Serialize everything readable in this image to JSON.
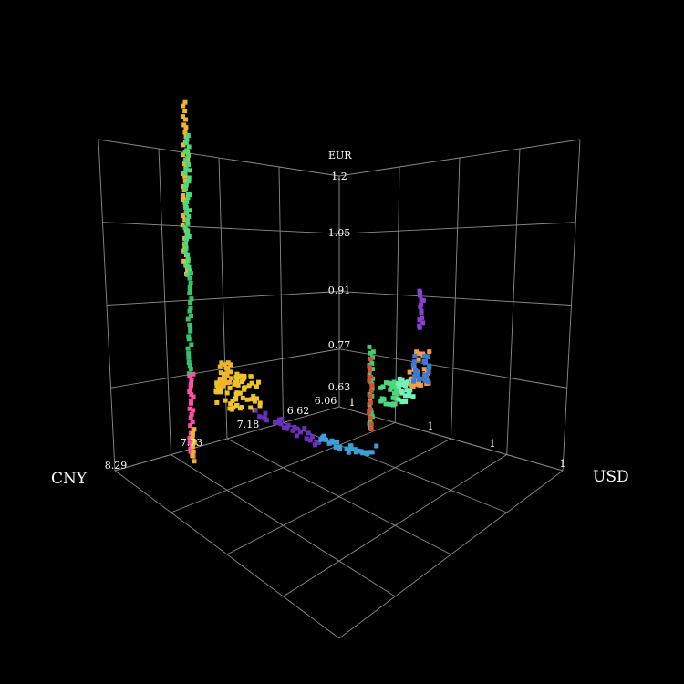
{
  "chart_data": {
    "type": "scatter",
    "title": "",
    "xlabel": "CNY",
    "ylabel": "USD",
    "zlabel": "EUR",
    "cny_ticks": [
      "8.29",
      "7.73",
      "7.18",
      "6.62",
      "6.06"
    ],
    "usd_ticks": [
      "1",
      "1",
      "1",
      "1"
    ],
    "eur_ticks": [
      "1.2",
      "1.05",
      "0.91",
      "0.77",
      "0.63"
    ],
    "series": [
      {
        "color": "#f0b429",
        "points": [
          [
            6.5,
            0.0,
            0.7
          ],
          [
            6.55,
            0.05,
            0.72
          ],
          [
            6.6,
            0.1,
            0.74
          ]
        ]
      },
      {
        "color": "#7b2fbf",
        "points": [
          [
            6.3,
            0.35,
            0.6
          ],
          [
            6.35,
            0.4,
            0.62
          ]
        ]
      },
      {
        "color": "#39b8d9",
        "points": [
          [
            6.2,
            0.45,
            0.6
          ],
          [
            6.25,
            0.5,
            0.61
          ]
        ]
      },
      {
        "color": "#4cd97b",
        "points": [
          [
            6.1,
            0.6,
            0.65
          ],
          [
            6.15,
            0.65,
            0.66
          ]
        ]
      },
      {
        "color": "#ff4fa3",
        "points": [
          [
            7.0,
            0.0,
            0.64
          ],
          [
            7.05,
            0.02,
            0.66
          ]
        ]
      },
      {
        "color": "#e24a33",
        "points": [
          [
            6.06,
            0.0,
            0.63
          ],
          [
            6.06,
            0.0,
            0.8
          ]
        ]
      },
      {
        "color": "#f39c4a",
        "points": [
          [
            6.06,
            0.55,
            0.72
          ],
          [
            6.08,
            0.6,
            0.74
          ]
        ]
      },
      {
        "color": "#3a7bd5",
        "points": [
          [
            6.06,
            0.62,
            0.76
          ],
          [
            6.07,
            0.64,
            0.78
          ]
        ]
      }
    ]
  }
}
